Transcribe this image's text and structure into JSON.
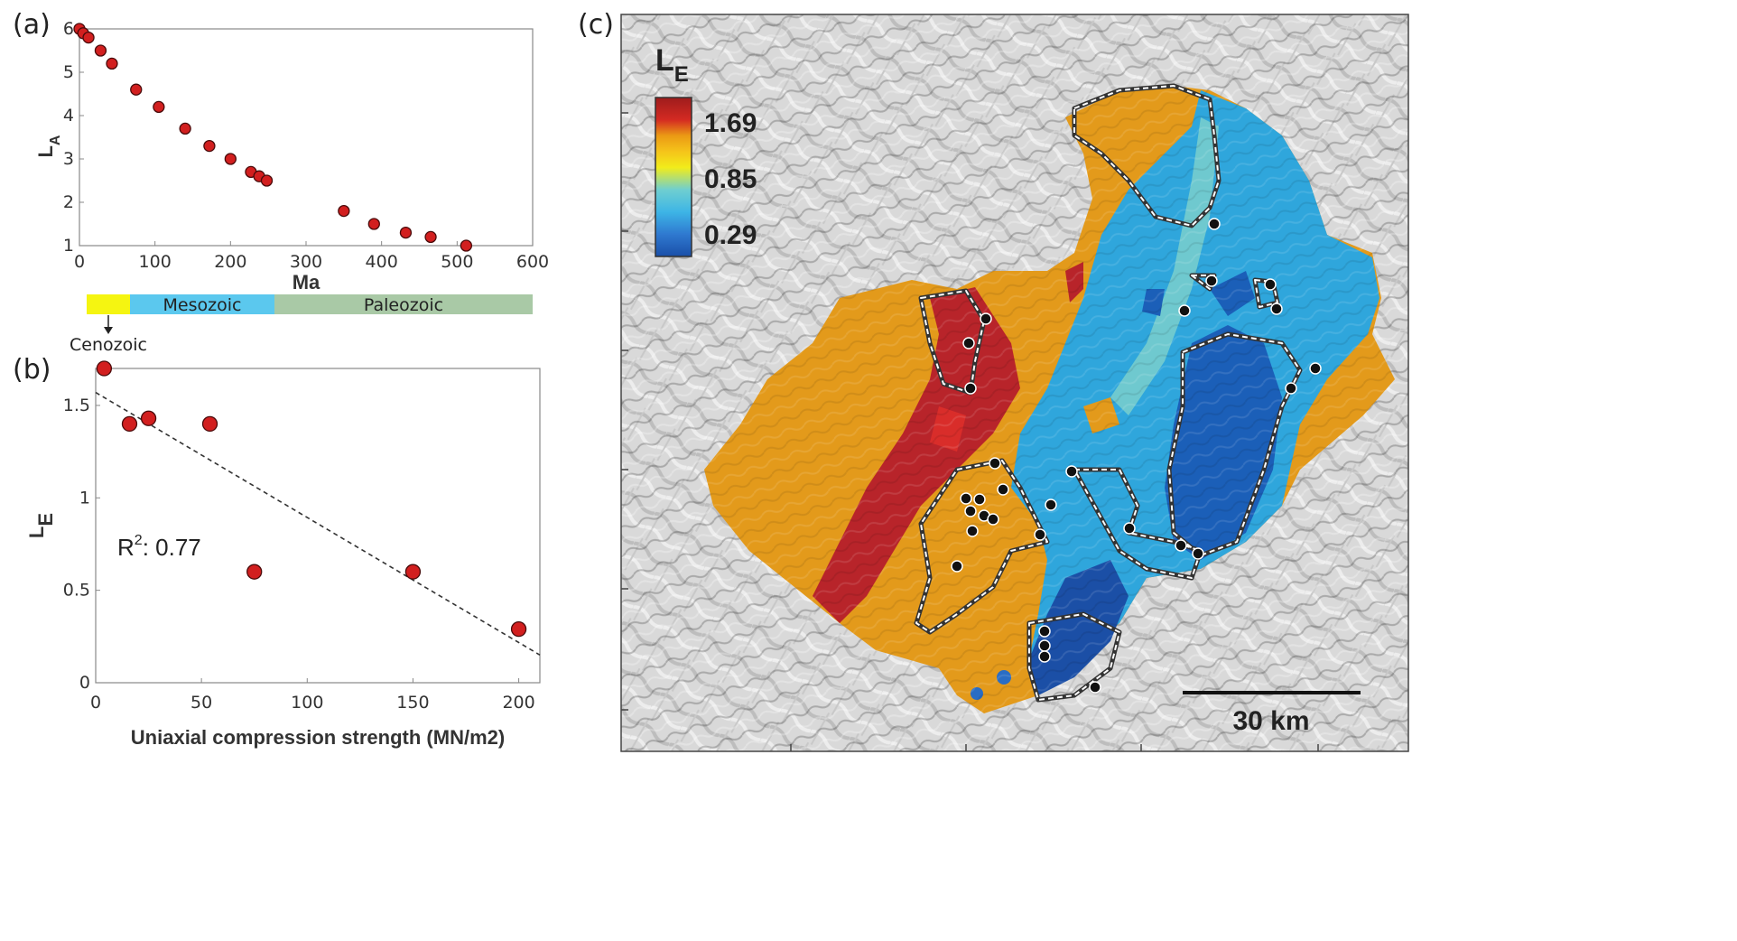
{
  "labels": {
    "a": "(a)",
    "b": "(b)",
    "c": "(c)"
  },
  "colors": {
    "marker": "#d21f1f",
    "era_cenozoic": "#f5f511",
    "era_mesozoic": "#5bc8ee",
    "era_paleozoic": "#a9c9a6",
    "high": "#b01c1c",
    "mid_high": "#e8930b",
    "mid": "#f5f511",
    "mid_low": "#3fb9df",
    "low": "#1a5fb4"
  },
  "geologic_scale": {
    "cenozoic": "Cenozoic",
    "mesozoic": "Mesozoic",
    "paleozoic": "Paleozoic"
  },
  "chart_data": [
    {
      "type": "scatter",
      "xlabel": "Ma",
      "ylabel": "L",
      "ylabel_sub": "A",
      "xlim": [
        0,
        600
      ],
      "ylim": [
        1,
        6
      ],
      "xticks": [
        "0",
        "100",
        "200",
        "300",
        "400",
        "500",
        "600"
      ],
      "yticks": [
        "1",
        "2",
        "3",
        "4",
        "5",
        "6"
      ],
      "x": [
        0,
        5,
        12,
        28,
        43,
        75,
        105,
        140,
        172,
        200,
        227,
        238,
        248,
        350,
        390,
        432,
        465,
        512
      ],
      "y": [
        6.0,
        5.9,
        5.8,
        5.5,
        5.2,
        4.6,
        4.2,
        3.7,
        3.3,
        3.0,
        2.7,
        2.6,
        2.5,
        1.8,
        1.5,
        1.3,
        1.2,
        1.0
      ]
    },
    {
      "type": "scatter",
      "xlabel": "Uniaxial compression strength (MN/m2)",
      "ylabel": "L",
      "ylabel_sub": "E",
      "xlim": [
        0,
        210
      ],
      "ylim": [
        0,
        1.7
      ],
      "xticks": [
        "0",
        "50",
        "100",
        "150",
        "200"
      ],
      "yticks": [
        "0",
        "0.5",
        "1",
        "1.5"
      ],
      "x": [
        4,
        16,
        25,
        54,
        75,
        150,
        200
      ],
      "y": [
        1.7,
        1.4,
        1.43,
        1.4,
        0.6,
        0.6,
        0.29
      ],
      "trendline": {
        "x": [
          0,
          210
        ],
        "y": [
          1.57,
          0.15
        ]
      },
      "annotation": {
        "text": "R",
        "sup": "2",
        "rest": ": 0.77"
      }
    }
  ],
  "map": {
    "legend_title": "L",
    "legend_sub": "E",
    "legend_values": [
      "1.69",
      "0.85",
      "0.29"
    ],
    "scale_label": "30 km",
    "stations": 34
  }
}
